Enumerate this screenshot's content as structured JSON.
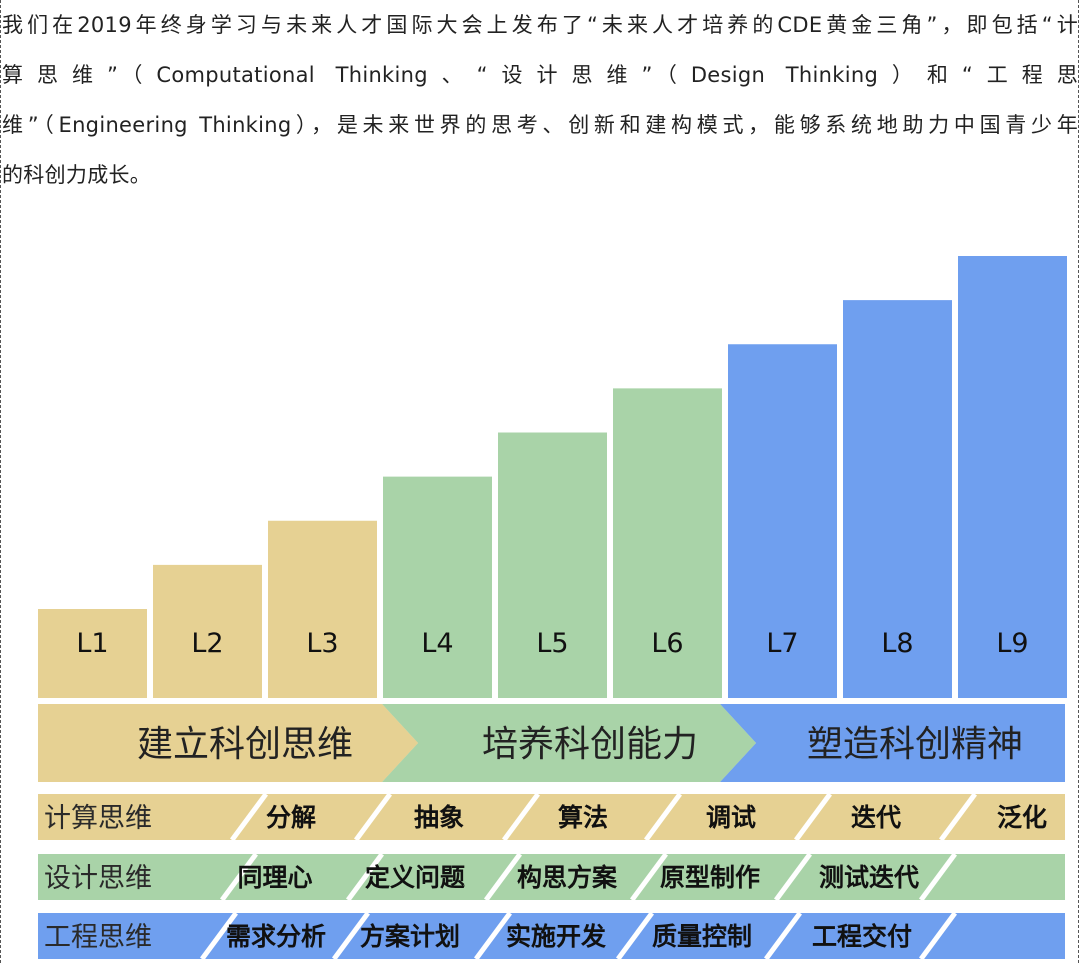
{
  "intro_lines": [
    "我们在2019年终身学习与未来人才国际大会上发布了“未来人才培养的CDE黄金三角”，即包括“计",
    "算思维”（Computational Thinking、“设计思维”（Design Thinking）和“工程思",
    "维”（Engineering Thinking），是未来世界的思考、创新和建构模式，能够系统地助力中国青少年",
    "的科创力成长。"
  ],
  "colors": {
    "yellow": "#e6d193",
    "green": "#a9d3a8",
    "blue": "#6f9fef"
  },
  "levels": [
    {
      "label": "L1",
      "height": 1,
      "color": "yellow"
    },
    {
      "label": "L2",
      "height": 2,
      "color": "yellow"
    },
    {
      "label": "L3",
      "height": 3,
      "color": "yellow"
    },
    {
      "label": "L4",
      "height": 4,
      "color": "green"
    },
    {
      "label": "L5",
      "height": 5,
      "color": "green"
    },
    {
      "label": "L6",
      "height": 6,
      "color": "green"
    },
    {
      "label": "L7",
      "height": 7,
      "color": "blue"
    },
    {
      "label": "L8",
      "height": 8,
      "color": "blue"
    },
    {
      "label": "L9",
      "height": 9,
      "color": "blue"
    }
  ],
  "phases": [
    {
      "label": "建立科创思维",
      "color": "yellow"
    },
    {
      "label": "培养科创能力",
      "color": "green"
    },
    {
      "label": "塑造科创精神",
      "color": "blue"
    }
  ],
  "rows": [
    {
      "name": "计算思维",
      "color": "yellow",
      "items": [
        "分解",
        "抽象",
        "算法",
        "调试",
        "迭代",
        "泛化"
      ]
    },
    {
      "name": "设计思维",
      "color": "green",
      "items": [
        "同理心",
        "定义问题",
        "构思方案",
        "原型制作",
        "测试迭代"
      ]
    },
    {
      "name": "工程思维",
      "color": "blue",
      "items": [
        "需求分析",
        "方案计划",
        "实施开发",
        "质量控制",
        "工程交付"
      ]
    }
  ]
}
